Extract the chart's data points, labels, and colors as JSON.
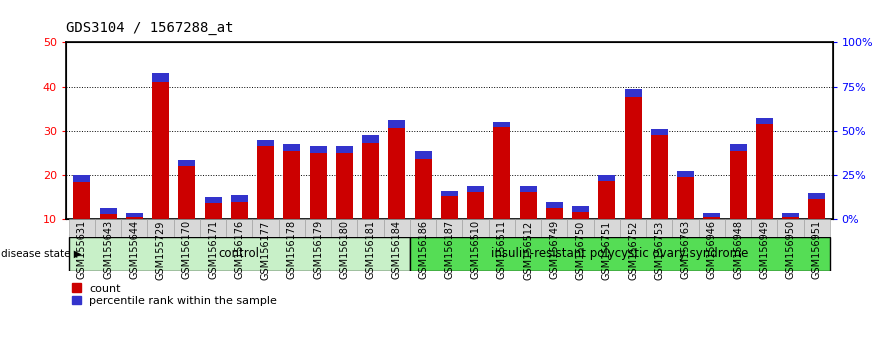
{
  "title": "GDS3104 / 1567288_at",
  "samples": [
    "GSM155631",
    "GSM155643",
    "GSM155644",
    "GSM155729",
    "GSM156170",
    "GSM156171",
    "GSM156176",
    "GSM156177",
    "GSM156178",
    "GSM156179",
    "GSM156180",
    "GSM156181",
    "GSM156184",
    "GSM156186",
    "GSM156187",
    "GSM156510",
    "GSM156511",
    "GSM156512",
    "GSM156749",
    "GSM156750",
    "GSM156751",
    "GSM156752",
    "GSM156753",
    "GSM156763",
    "GSM156946",
    "GSM156948",
    "GSM156949",
    "GSM156950",
    "GSM156951"
  ],
  "count_values": [
    20.0,
    12.5,
    11.5,
    43.0,
    23.5,
    15.0,
    15.5,
    28.0,
    27.0,
    26.5,
    26.5,
    29.0,
    32.5,
    25.5,
    16.5,
    17.5,
    32.0,
    17.5,
    14.0,
    13.0,
    20.0,
    39.5,
    30.5,
    21.0,
    11.5,
    27.0,
    33.0,
    11.5,
    16.0
  ],
  "percentile_heights": [
    1.5,
    1.2,
    1.0,
    2.0,
    1.5,
    1.3,
    1.5,
    1.5,
    1.5,
    1.5,
    1.5,
    1.8,
    1.8,
    1.8,
    1.2,
    1.3,
    1.2,
    1.3,
    1.3,
    1.2,
    1.3,
    1.8,
    1.5,
    1.5,
    1.0,
    1.5,
    1.5,
    1.0,
    1.3
  ],
  "control_count": 13,
  "bar_color_count": "#cc0000",
  "bar_color_pct": "#3333cc",
  "ymin": 10,
  "ymax": 50,
  "yticks_left": [
    10,
    20,
    30,
    40,
    50
  ],
  "yticks_right_labels": [
    "0%",
    "25%",
    "50%",
    "75%",
    "100%"
  ],
  "yticks_right_positions": [
    10,
    20,
    30,
    40,
    50
  ],
  "disease_state_label": "disease state",
  "control_label": "control",
  "disease_label": "insulin-resistant polycystic ovary syndrome",
  "legend_count_label": "count",
  "legend_pct_label": "percentile rank within the sample",
  "title_fontsize": 10,
  "tick_fontsize": 7,
  "bar_width": 0.65,
  "control_bg_color": "#c8f0c8",
  "disease_bg_color": "#55dd55"
}
